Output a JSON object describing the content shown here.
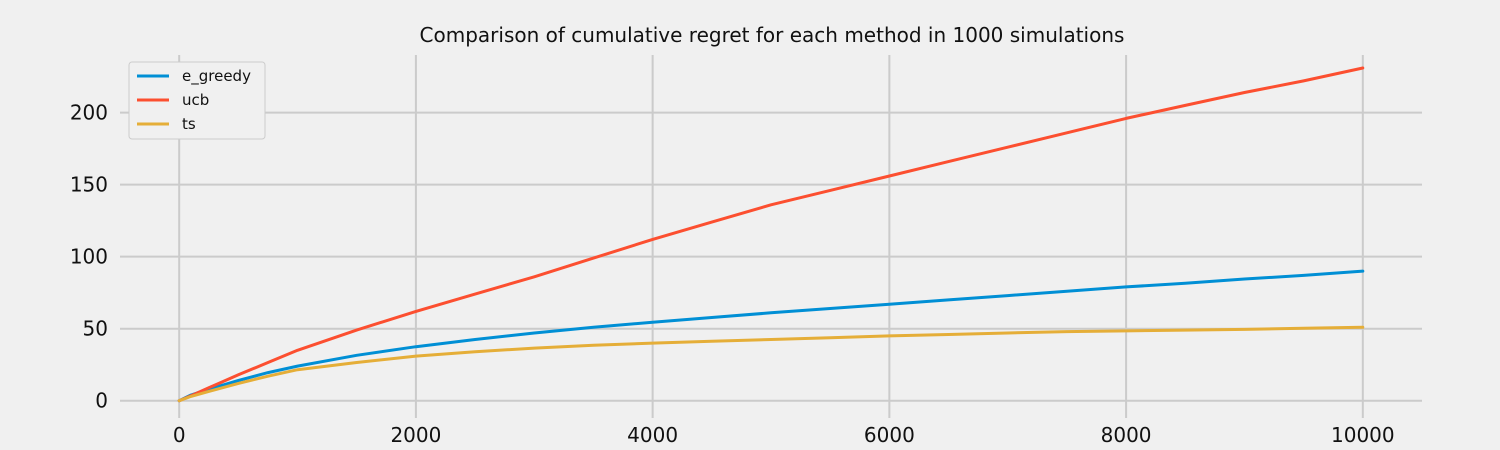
{
  "chart_data": {
    "type": "line",
    "title": "Comparison of cumulative regret for each method in 1000 simulations",
    "xlabel": "",
    "ylabel": "",
    "xlim": [
      -500,
      10500
    ],
    "ylim": [
      -12,
      240
    ],
    "xticks": [
      0,
      2000,
      4000,
      6000,
      8000,
      10000
    ],
    "yticks": [
      0,
      50,
      100,
      150,
      200
    ],
    "grid": true,
    "legend_position": "upper-left",
    "x": [
      0,
      100,
      250,
      500,
      750,
      1000,
      1500,
      2000,
      2500,
      3000,
      3500,
      4000,
      4500,
      5000,
      5500,
      6000,
      6500,
      7000,
      7500,
      8000,
      8500,
      9000,
      9500,
      10000
    ],
    "series": [
      {
        "name": "e_greedy",
        "color": "#008fd5",
        "values": [
          0,
          4,
          8,
          14,
          19.5,
          24,
          31.5,
          37.5,
          42.5,
          47,
          51,
          54.5,
          57.8,
          61,
          64,
          67,
          70,
          73,
          76,
          79,
          81.5,
          84.5,
          87,
          90
        ]
      },
      {
        "name": "ucb",
        "color": "#fc4f30",
        "values": [
          0,
          3.5,
          9,
          18,
          26.5,
          35,
          49,
          62,
          74,
          86,
          99,
          112,
          124,
          136,
          146,
          156,
          166,
          176,
          186,
          196,
          205,
          214,
          222,
          231
        ]
      },
      {
        "name": "ts",
        "color": "#e5ae38",
        "values": [
          0,
          3,
          6.5,
          12,
          17,
          21.5,
          26.5,
          31,
          34,
          36.5,
          38.5,
          40,
          41.3,
          42.5,
          43.7,
          45,
          46,
          47,
          48,
          48.5,
          49,
          49.5,
          50.3,
          51
        ]
      }
    ]
  }
}
